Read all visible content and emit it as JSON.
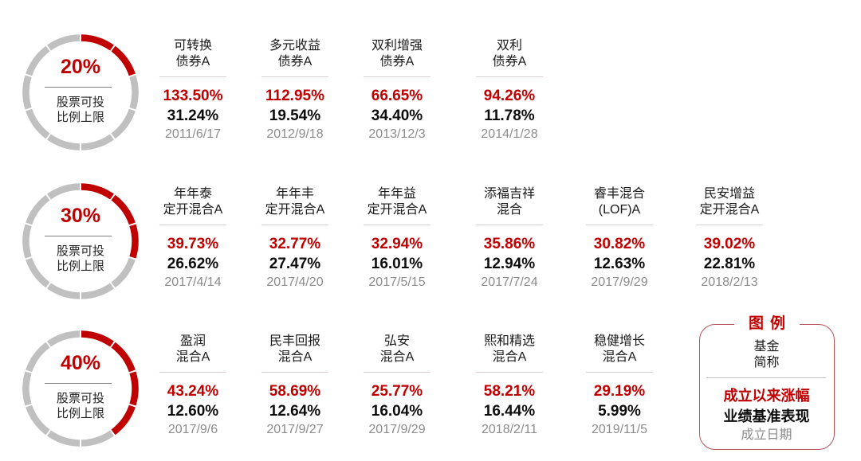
{
  "colors": {
    "accent_red": "#c00000",
    "ring_gray": "#c0c0c0",
    "benchmark_black": "#0d0d0d",
    "date_gray": "#8c8c8c"
  },
  "groups": [
    {
      "equity_cap_pct": "20%",
      "equity_cap_label_line1": "股票可投",
      "equity_cap_label_line2": "比例上限",
      "ring_segments_total": 10,
      "ring_segments_filled": 2,
      "funds": [
        {
          "name_line1": "可转换",
          "name_line2": "债券A",
          "return_since_inception": "133.50%",
          "benchmark": "31.24%",
          "inception_date": "2011/6/17"
        },
        {
          "name_line1": "多元收益",
          "name_line2": "债券A",
          "return_since_inception": "112.95%",
          "benchmark": "19.54%",
          "inception_date": "2012/9/18"
        },
        {
          "name_line1": "双利增强",
          "name_line2": "债券A",
          "return_since_inception": "66.65%",
          "benchmark": "34.40%",
          "inception_date": "2013/12/3"
        },
        {
          "name_line1": "双利",
          "name_line2": "债券A",
          "return_since_inception": "94.26%",
          "benchmark": "11.78%",
          "inception_date": "2014/1/28"
        }
      ]
    },
    {
      "equity_cap_pct": "30%",
      "equity_cap_label_line1": "股票可投",
      "equity_cap_label_line2": "比例上限",
      "ring_segments_total": 10,
      "ring_segments_filled": 3,
      "funds": [
        {
          "name_line1": "年年泰",
          "name_line2": "定开混合A",
          "return_since_inception": "39.73%",
          "benchmark": "26.62%",
          "inception_date": "2017/4/14"
        },
        {
          "name_line1": "年年丰",
          "name_line2": "定开混合A",
          "return_since_inception": "32.77%",
          "benchmark": "27.47%",
          "inception_date": "2017/4/20"
        },
        {
          "name_line1": "年年益",
          "name_line2": "定开混合A",
          "return_since_inception": "32.94%",
          "benchmark": "16.01%",
          "inception_date": "2017/5/15"
        },
        {
          "name_line1": "添福吉祥",
          "name_line2": "混合",
          "return_since_inception": "35.86%",
          "benchmark": "12.94%",
          "inception_date": "2017/7/24"
        },
        {
          "name_line1": "睿丰混合",
          "name_line2": "(LOF)A",
          "return_since_inception": "30.82%",
          "benchmark": "12.63%",
          "inception_date": "2017/9/29"
        },
        {
          "name_line1": "民安增益",
          "name_line2": "定开混合A",
          "return_since_inception": "39.02%",
          "benchmark": "22.81%",
          "inception_date": "2018/2/13"
        }
      ]
    },
    {
      "equity_cap_pct": "40%",
      "equity_cap_label_line1": "股票可投",
      "equity_cap_label_line2": "比例上限",
      "ring_segments_total": 10,
      "ring_segments_filled": 4,
      "funds": [
        {
          "name_line1": "盈润",
          "name_line2": "混合A",
          "return_since_inception": "43.24%",
          "benchmark": "12.60%",
          "inception_date": "2017/9/6"
        },
        {
          "name_line1": "民丰回报",
          "name_line2": "混合A",
          "return_since_inception": "58.69%",
          "benchmark": "12.64%",
          "inception_date": "2017/9/27"
        },
        {
          "name_line1": "弘安",
          "name_line2": "混合A",
          "return_since_inception": "25.77%",
          "benchmark": "16.04%",
          "inception_date": "2017/9/29"
        },
        {
          "name_line1": "熙和精选",
          "name_line2": "混合A",
          "return_since_inception": "58.21%",
          "benchmark": "16.44%",
          "inception_date": "2018/2/11"
        },
        {
          "name_line1": "稳健增长",
          "name_line2": "混合A",
          "return_since_inception": "29.19%",
          "benchmark": "5.99%",
          "inception_date": "2019/11/5"
        }
      ]
    }
  ],
  "legend": {
    "title": "图例",
    "name_line1": "基金",
    "name_line2": "简称",
    "return_label": "成立以来涨幅",
    "benchmark_label": "业绩基准表现",
    "date_label": "成立日期"
  }
}
